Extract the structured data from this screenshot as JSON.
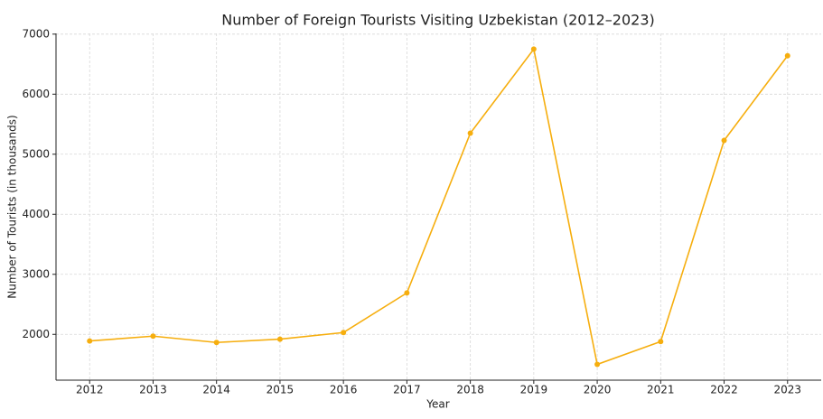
{
  "chart_data": {
    "type": "line",
    "title": "Number of Foreign Tourists Visiting Uzbekistan (2012–2023)",
    "x_label": "Year",
    "y_label": "Number of Tourists (in thousands)",
    "x": [
      2012,
      2013,
      2014,
      2015,
      2016,
      2017,
      2018,
      2019,
      2020,
      2021,
      2022,
      2023
    ],
    "series": [
      {
        "name": "Foreign tourists",
        "color": "#f6ae0e",
        "values": [
          1890,
          1970,
          1865,
          1920,
          2030,
          2690,
          5350,
          6750,
          1500,
          1880,
          5230,
          6640
        ]
      }
    ],
    "xlim": [
      2011.47,
      2023.53
    ],
    "ylim": [
      1237,
      7012
    ],
    "xticks": [
      2012,
      2013,
      2014,
      2015,
      2016,
      2017,
      2018,
      2019,
      2020,
      2021,
      2022,
      2023
    ],
    "yticks": [
      2000,
      3000,
      4000,
      5000,
      6000,
      7000
    ],
    "grid": true
  }
}
